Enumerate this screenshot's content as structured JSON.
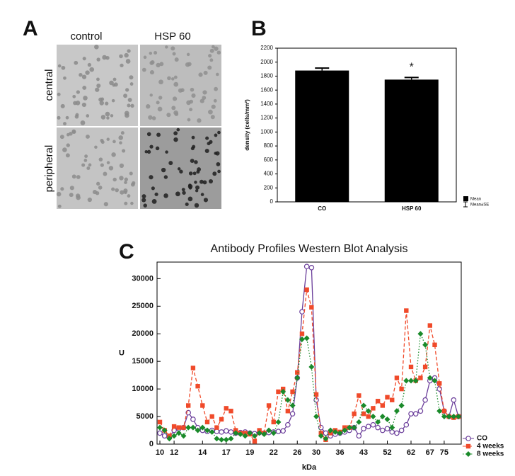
{
  "panel_labels": [
    "A",
    "B",
    "C"
  ],
  "micrographs": {
    "columns": [
      "control",
      "HSP 60"
    ],
    "rows": [
      "central",
      "peripheral"
    ]
  },
  "chart_data": [
    {
      "type": "bar",
      "categories": [
        "CO",
        "HSP 60"
      ],
      "values": [
        1880,
        1750
      ],
      "errors": [
        35,
        30
      ],
      "color": "#000000",
      "ylabel": "density (cells/mm²)",
      "ylim": [
        0,
        2200
      ],
      "yticks": [
        0,
        200,
        400,
        600,
        800,
        1000,
        1200,
        1400,
        1600,
        1800,
        2000,
        2200
      ],
      "annotations": [
        {
          "category": 1,
          "text": "*"
        }
      ],
      "legend": [
        "Mean",
        "Mean±SE"
      ]
    },
    {
      "type": "line",
      "title": "Antibody Profiles Western Blot Analysis",
      "xlabel": "kDa",
      "ylabel": "U",
      "categories": [
        "10",
        null,
        null,
        "12",
        null,
        null,
        null,
        null,
        null,
        "14",
        null,
        null,
        null,
        null,
        "17",
        null,
        null,
        null,
        null,
        "19",
        null,
        null,
        null,
        null,
        "22",
        null,
        null,
        null,
        null,
        "26",
        null,
        null,
        null,
        "30",
        null,
        null,
        null,
        null,
        "36",
        null,
        null,
        null,
        null,
        "43",
        null,
        null,
        null,
        null,
        "52",
        null,
        null,
        null,
        null,
        "62",
        null,
        null,
        null,
        "67",
        null,
        null,
        "75",
        null,
        null,
        null
      ],
      "ylim": [
        0,
        33000
      ],
      "yticks": [
        0,
        5000,
        10000,
        15000,
        20000,
        25000,
        30000
      ],
      "legend_position": "lower right",
      "series": [
        {
          "name": "CO",
          "color": "#6a3d9a",
          "line_style": "solid",
          "marker": "circle",
          "values": [
            2000,
            1500,
            1200,
            2500,
            2800,
            3000,
            5700,
            4500,
            3000,
            2500,
            2300,
            2500,
            2300,
            2200,
            2400,
            2200,
            2000,
            2100,
            2200,
            2000,
            1900,
            2100,
            2000,
            2100,
            2200,
            2300,
            2400,
            3500,
            5500,
            12000,
            24000,
            32200,
            32000,
            8000,
            3000,
            2000,
            1500,
            1800,
            2000,
            2200,
            2500,
            3000,
            1500,
            2800,
            3200,
            3500,
            3000,
            2500,
            2800,
            2200,
            2000,
            2500,
            3500,
            5500,
            5500,
            6000,
            8000,
            11500,
            12000,
            10000,
            6000,
            5000,
            8000,
            5000
          ]
        },
        {
          "name": "4 weeks",
          "color": "#f04a2a",
          "line_style": "dashed",
          "marker": "square",
          "values": [
            4000,
            2500,
            1500,
            3200,
            3000,
            3000,
            7000,
            13800,
            10500,
            7000,
            4000,
            5000,
            3000,
            4500,
            6500,
            6000,
            2500,
            2000,
            2000,
            1800,
            500,
            2500,
            2000,
            7000,
            4000,
            9500,
            10000,
            6000,
            9500,
            13000,
            20000,
            28000,
            24800,
            9000,
            2000,
            800,
            2000,
            2500,
            2200,
            3000,
            3000,
            5500,
            8800,
            5500,
            5000,
            6500,
            7800,
            7000,
            8500,
            8000,
            12000,
            10000,
            24200,
            14000,
            11500,
            12000,
            14000,
            21500,
            18000,
            11000,
            6000,
            5000,
            4800,
            5000
          ]
        },
        {
          "name": "8 weeks",
          "color": "#1a8a2a",
          "line_style": "dotted",
          "marker": "diamond",
          "values": [
            3000,
            2500,
            1000,
            1500,
            2000,
            1500,
            3000,
            3000,
            2500,
            3000,
            2500,
            2200,
            1000,
            800,
            800,
            1000,
            2000,
            1800,
            1500,
            2000,
            1500,
            2000,
            1800,
            2500,
            2000,
            4000,
            9500,
            8000,
            7000,
            12000,
            19000,
            19200,
            14000,
            5000,
            1500,
            1000,
            2500,
            2200,
            2000,
            2500,
            3000,
            3000,
            4000,
            7000,
            6000,
            5000,
            4000,
            5000,
            4500,
            3000,
            6000,
            7000,
            11500,
            11500,
            11500,
            20000,
            18000,
            12000,
            11500,
            6000,
            5000,
            5000,
            5000,
            5000
          ]
        }
      ]
    }
  ]
}
